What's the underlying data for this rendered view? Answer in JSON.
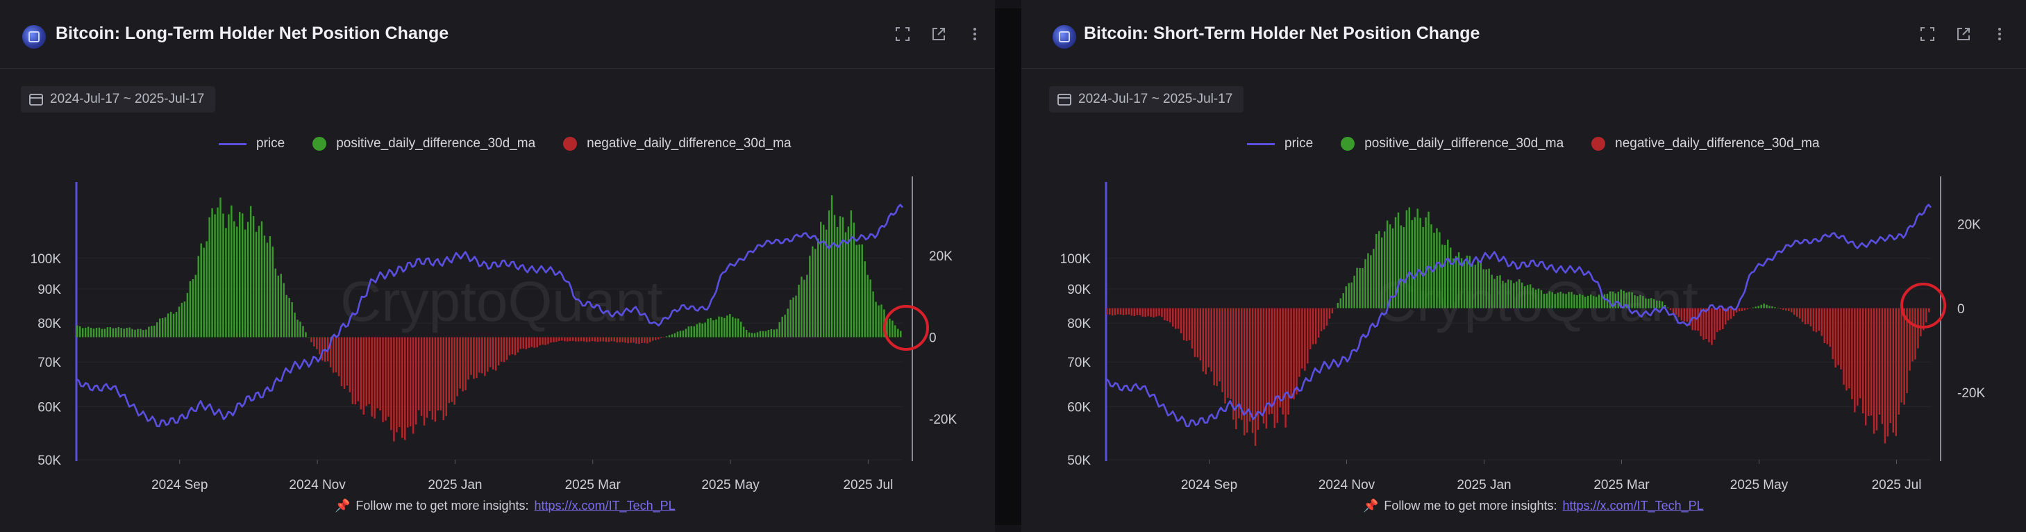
{
  "panels": {
    "left": {
      "title": "Bitcoin: Long-Term Holder Net Position Change",
      "date_range": "2024-Jul-17 ~ 2025-Jul-17",
      "watermark": "CryptoQuant",
      "footer_text": "Follow me to get more insights:",
      "footer_link": "https://x.com/IT_Tech_PL"
    },
    "right": {
      "title": "Bitcoin: Short-Term Holder Net Position Change",
      "date_range": "2024-Jul-17 ~ 2025-Jul-17",
      "watermark": "CryptoQuant",
      "footer_text": "Follow me to get more insights:",
      "footer_link": "https://x.com/IT_Tech_PL"
    }
  },
  "legend": {
    "price": "price",
    "positive": "positive_daily_difference_30d_ma",
    "negative": "negative_daily_difference_30d_ma"
  },
  "icons": [
    "expand-icon",
    "external-link-icon",
    "more-vertical-icon",
    "calendar-icon",
    "pin-icon"
  ],
  "colors": {
    "price": "#5b4fe0",
    "positive": "#3a9a2c",
    "negative": "#b3262a",
    "highlight_circle": "#d8202a"
  },
  "chart_data": [
    {
      "type": "bar",
      "title": "Bitcoin: Long-Term Holder Net Position Change",
      "date_range": [
        "2024-07-17",
        "2025-07-17"
      ],
      "x_ticks": [
        "2024 Sep",
        "2024 Nov",
        "2025 Jan",
        "2025 Mar",
        "2025 May",
        "2025 Jul"
      ],
      "x_tick_months": [
        1.5,
        3.5,
        5.5,
        7.5,
        9.5,
        11.5
      ],
      "price_axis": {
        "scale": "log",
        "range": [
          50000,
          130000
        ],
        "ticks": [
          50000,
          60000,
          70000,
          80000,
          90000,
          100000
        ],
        "tick_labels": [
          "50K",
          "60K",
          "70K",
          "80K",
          "90K",
          "100K"
        ]
      },
      "diff_axis": {
        "range": [
          -30000,
          38000
        ],
        "ticks": [
          -20000,
          0,
          20000
        ],
        "tick_labels": [
          "-20K",
          "0",
          "20K"
        ]
      },
      "price_keypoints": [
        [
          0,
          65000
        ],
        [
          0.5,
          64000
        ],
        [
          1.2,
          56000
        ],
        [
          1.8,
          60000
        ],
        [
          2.2,
          58500
        ],
        [
          2.7,
          63000
        ],
        [
          3.2,
          69000
        ],
        [
          3.6,
          72000
        ],
        [
          4.0,
          82000
        ],
        [
          4.3,
          92000
        ],
        [
          4.7,
          97000
        ],
        [
          5.2,
          99000
        ],
        [
          5.6,
          100500
        ],
        [
          6.0,
          98000
        ],
        [
          6.6,
          97000
        ],
        [
          7.1,
          94000
        ],
        [
          7.3,
          86000
        ],
        [
          7.7,
          83000
        ],
        [
          8.1,
          83500
        ],
        [
          8.4,
          80000
        ],
        [
          8.8,
          84000
        ],
        [
          9.2,
          85000
        ],
        [
          9.4,
          95000
        ],
        [
          9.8,
          103000
        ],
        [
          10.2,
          106000
        ],
        [
          10.5,
          108500
        ],
        [
          10.9,
          105000
        ],
        [
          11.3,
          106000
        ],
        [
          11.6,
          109000
        ],
        [
          11.9,
          117000
        ],
        [
          12.0,
          119000
        ]
      ],
      "diff_keypoints": [
        [
          0,
          2500
        ],
        [
          1.0,
          2000
        ],
        [
          1.5,
          7000
        ],
        [
          2.0,
          30000
        ],
        [
          2.4,
          31000
        ],
        [
          2.8,
          23000
        ],
        [
          3.2,
          5000
        ],
        [
          3.4,
          -800
        ],
        [
          3.6,
          -6000
        ],
        [
          4.2,
          -18000
        ],
        [
          4.7,
          -23000
        ],
        [
          5.2,
          -20000
        ],
        [
          5.8,
          -10000
        ],
        [
          6.5,
          -3000
        ],
        [
          7.0,
          -1000
        ],
        [
          7.5,
          -1000
        ],
        [
          8.3,
          -1500
        ],
        [
          8.8,
          1500
        ],
        [
          9.2,
          4500
        ],
        [
          9.6,
          5000
        ],
        [
          9.8,
          1000
        ],
        [
          10.2,
          2000
        ],
        [
          10.6,
          16000
        ],
        [
          11.0,
          31000
        ],
        [
          11.3,
          29000
        ],
        [
          11.6,
          10000
        ],
        [
          12.0,
          1500
        ]
      ]
    },
    {
      "type": "bar",
      "title": "Bitcoin: Short-Term Holder Net Position Change",
      "date_range": [
        "2024-07-17",
        "2025-07-17"
      ],
      "x_ticks": [
        "2024 Sep",
        "2024 Nov",
        "2025 Jan",
        "2025 Mar",
        "2025 May",
        "2025 Jul"
      ],
      "x_tick_months": [
        1.5,
        3.5,
        5.5,
        7.5,
        9.5,
        11.5
      ],
      "price_axis": {
        "scale": "log",
        "range": [
          50000,
          130000
        ],
        "ticks": [
          50000,
          60000,
          70000,
          80000,
          90000,
          100000
        ],
        "tick_labels": [
          "50K",
          "60K",
          "70K",
          "80K",
          "90K",
          "100K"
        ]
      },
      "diff_axis": {
        "range": [
          -36000,
          30000
        ],
        "ticks": [
          -20000,
          0,
          20000
        ],
        "tick_labels": [
          "-20K",
          "0",
          "20K"
        ]
      },
      "price_keypoints": [
        [
          0,
          65000
        ],
        [
          0.5,
          64000
        ],
        [
          1.2,
          56000
        ],
        [
          1.8,
          60000
        ],
        [
          2.2,
          58500
        ],
        [
          2.7,
          63000
        ],
        [
          3.2,
          69000
        ],
        [
          3.6,
          72000
        ],
        [
          4.0,
          82000
        ],
        [
          4.3,
          92000
        ],
        [
          4.7,
          97000
        ],
        [
          5.2,
          99000
        ],
        [
          5.6,
          100500
        ],
        [
          6.0,
          98000
        ],
        [
          6.6,
          97000
        ],
        [
          7.1,
          94000
        ],
        [
          7.3,
          86000
        ],
        [
          7.7,
          83000
        ],
        [
          8.1,
          83500
        ],
        [
          8.4,
          80000
        ],
        [
          8.8,
          84000
        ],
        [
          9.2,
          85000
        ],
        [
          9.4,
          95000
        ],
        [
          9.8,
          103000
        ],
        [
          10.2,
          106000
        ],
        [
          10.5,
          108500
        ],
        [
          10.9,
          105000
        ],
        [
          11.3,
          106000
        ],
        [
          11.6,
          109000
        ],
        [
          11.9,
          117000
        ],
        [
          12.0,
          119000
        ]
      ],
      "diff_keypoints": [
        [
          0,
          -1500
        ],
        [
          0.8,
          -2000
        ],
        [
          1.2,
          -8000
        ],
        [
          1.8,
          -24000
        ],
        [
          2.2,
          -30000
        ],
        [
          2.6,
          -25000
        ],
        [
          3.0,
          -10000
        ],
        [
          3.3,
          -1000
        ],
        [
          3.6,
          8000
        ],
        [
          4.0,
          17000
        ],
        [
          4.4,
          24000
        ],
        [
          4.8,
          18000
        ],
        [
          5.2,
          12000
        ],
        [
          5.8,
          7000
        ],
        [
          6.4,
          4000
        ],
        [
          7.0,
          3000
        ],
        [
          7.6,
          4000
        ],
        [
          8.1,
          1500
        ],
        [
          8.4,
          -3000
        ],
        [
          8.8,
          -8000
        ],
        [
          9.2,
          -1000
        ],
        [
          9.6,
          1000
        ],
        [
          10.0,
          -1000
        ],
        [
          10.4,
          -6000
        ],
        [
          10.8,
          -18000
        ],
        [
          11.2,
          -30000
        ],
        [
          11.5,
          -28000
        ],
        [
          11.8,
          -12000
        ],
        [
          12.0,
          -1000
        ]
      ]
    }
  ]
}
